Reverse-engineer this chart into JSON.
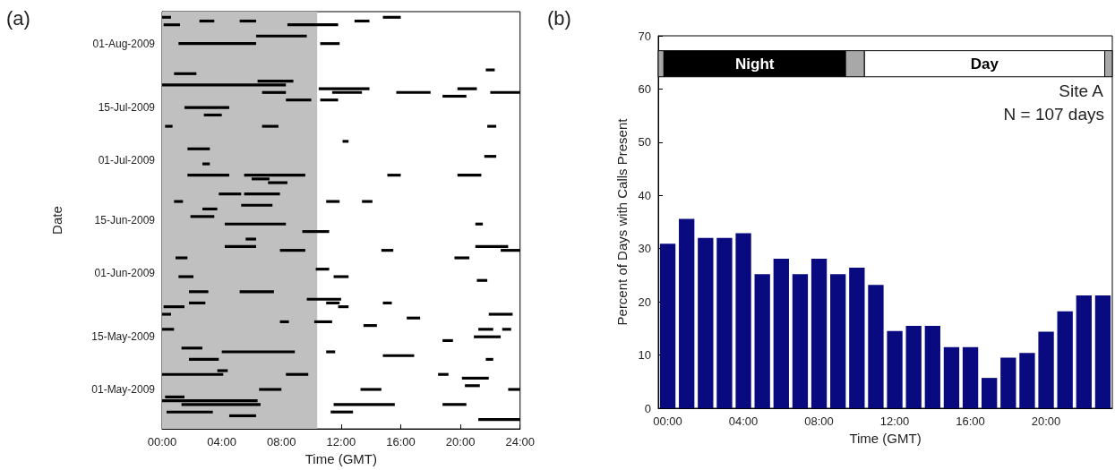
{
  "chart_data": [
    {
      "type": "bar",
      "orientation": "horizontal",
      "title": "(a)",
      "xlabel": "Time (GMT)",
      "ylabel": "Date",
      "xlim": [
        0,
        24
      ],
      "xticks": [
        {
          "value": 0,
          "label": "00:00"
        },
        {
          "value": 4,
          "label": "04:00"
        },
        {
          "value": 8,
          "label": "08:00"
        },
        {
          "value": 12,
          "label": "12:00"
        },
        {
          "value": 16,
          "label": "16:00"
        },
        {
          "value": 20,
          "label": "20:00"
        },
        {
          "value": 24,
          "label": "24:00"
        }
      ],
      "categories": [
        null,
        null,
        null,
        null,
        null,
        null,
        null,
        null,
        "01-Aug-2009",
        null,
        null,
        null,
        null,
        null,
        null,
        null,
        null,
        null,
        null,
        null,
        null,
        null,
        null,
        null,
        null,
        "15-Jul-2009",
        null,
        null,
        null,
        null,
        null,
        null,
        null,
        null,
        null,
        null,
        null,
        null,
        null,
        "01-Jul-2009",
        null,
        null,
        null,
        null,
        null,
        null,
        null,
        null,
        null,
        null,
        null,
        null,
        null,
        null,
        null,
        "15-Jun-2009",
        null,
        null,
        null,
        null,
        null,
        null,
        null,
        null,
        null,
        null,
        null,
        null,
        null,
        "01-Jun-2009",
        null,
        null,
        null,
        null,
        null,
        null,
        null,
        null,
        null,
        null,
        null,
        null,
        null,
        null,
        null,
        null,
        "15-May-2009",
        null,
        null,
        null,
        null,
        null,
        null,
        null,
        null,
        null,
        null,
        null,
        null,
        null,
        "01-May-2009",
        null,
        null,
        null,
        null,
        null,
        null,
        null,
        null,
        null,
        null
      ],
      "grid": false,
      "bands": [
        {
          "axis": "x",
          "from": 0,
          "to": 10.4,
          "color": "#c0c0c0"
        }
      ],
      "series": [
        {
          "color": "#000000",
          "base": [
            null,
            0.0,
            2.5,
            0.1,
            null,
            null,
            6.3,
            null,
            1.1,
            null,
            null,
            null,
            null,
            null,
            null,
            21.7,
            0.8,
            null,
            6.4,
            0.0,
            10.5,
            6.7,
            18.8,
            8.3,
            null,
            1.5,
            null,
            2.8,
            null,
            null,
            0.2,
            null,
            null,
            null,
            12.1,
            null,
            1.7,
            null,
            21.6,
            null,
            2.7,
            null,
            null,
            1.7,
            6.0,
            7.1,
            null,
            null,
            3.8,
            null,
            0.8,
            5.3,
            2.7,
            null,
            1.9,
            null,
            4.2,
            null,
            9.4,
            null,
            5.6,
            null,
            4.2,
            7.9,
            null,
            0.9,
            null,
            null,
            10.3,
            null,
            1.1,
            21.1,
            null,
            null,
            1.8,
            null,
            9.7,
            1.8,
            0.1,
            null,
            0.0,
            16.4,
            7.9,
            13.5,
            0.0,
            null,
            20.9,
            18.8,
            null,
            1.3,
            4.0,
            14.8,
            1.8,
            null,
            null,
            3.7,
            0.0,
            20.1,
            null,
            20.3,
            6.5,
            null,
            0.2,
            0.0,
            1.3,
            null,
            0.3,
            4.5,
            21.2,
            null,
            null
          ],
          "values": [
            null,
            0.6,
            1.0,
            1.1,
            null,
            null,
            3.4,
            null,
            5.2,
            null,
            null,
            null,
            null,
            null,
            null,
            0.6,
            1.5,
            null,
            2.4,
            8.3,
            3.4,
            1.6,
            1.6,
            1.7,
            null,
            3.0,
            null,
            1.2,
            null,
            null,
            0.5,
            null,
            null,
            null,
            0.4,
            null,
            1.5,
            null,
            0.8,
            null,
            0.5,
            null,
            null,
            2.8,
            1.2,
            1.3,
            null,
            null,
            1.5,
            null,
            0.6,
            2.1,
            1.0,
            null,
            1.6,
            null,
            4.1,
            null,
            1.8,
            null,
            0.7,
            null,
            2.1,
            1.7,
            null,
            0.8,
            null,
            null,
            0.9,
            null,
            1.0,
            0.7,
            null,
            null,
            1.3,
            null,
            2.3,
            1.1,
            1.4,
            null,
            0.6,
            0.9,
            0.6,
            0.9,
            0.8,
            null,
            1.8,
            0.7,
            null,
            1.4,
            4.9,
            2.1,
            2.0,
            null,
            null,
            0.7,
            4.1,
            1.8,
            null,
            1.0,
            1.5,
            null,
            1.3,
            6.4,
            5.3,
            null,
            3.1,
            1.8,
            2.8,
            null,
            null
          ]
        },
        {
          "color": "#000000",
          "base": [
            null,
            14.8,
            5.2,
            8.4,
            null,
            null,
            null,
            null,
            10.6,
            null,
            null,
            null,
            null,
            null,
            null,
            null,
            null,
            null,
            null,
            null,
            19.8,
            11.4,
            null,
            10.6,
            null,
            null,
            null,
            null,
            null,
            null,
            6.7,
            null,
            null,
            null,
            null,
            null,
            null,
            null,
            null,
            null,
            null,
            null,
            null,
            5.5,
            null,
            null,
            null,
            null,
            5.5,
            null,
            11.0,
            null,
            null,
            null,
            null,
            null,
            21.0,
            null,
            null,
            null,
            null,
            null,
            21.0,
            14.7,
            null,
            19.6,
            null,
            null,
            null,
            null,
            11.5,
            null,
            null,
            null,
            5.2,
            null,
            null,
            11.0,
            11.8,
            null,
            21.9,
            null,
            10.2,
            null,
            21.2,
            null,
            null,
            null,
            null,
            null,
            11.0,
            null,
            21.7,
            null,
            null,
            null,
            8.3,
            null,
            null,
            null,
            13.3,
            null,
            null,
            null,
            11.5,
            null,
            11.3,
            null,
            null,
            null,
            null
          ],
          "values": [
            null,
            1.2,
            1.1,
            3.4,
            null,
            null,
            null,
            null,
            1.3,
            null,
            null,
            null,
            null,
            null,
            null,
            null,
            null,
            null,
            null,
            null,
            1.3,
            2.0,
            null,
            1.2,
            null,
            null,
            null,
            null,
            null,
            null,
            1.1,
            null,
            null,
            null,
            null,
            null,
            null,
            null,
            null,
            null,
            null,
            null,
            null,
            4.1,
            null,
            null,
            null,
            null,
            2.4,
            null,
            0.9,
            null,
            null,
            null,
            null,
            null,
            0.5,
            null,
            null,
            null,
            null,
            null,
            2.2,
            0.8,
            null,
            1.0,
            null,
            null,
            null,
            null,
            1.0,
            null,
            null,
            null,
            2.3,
            null,
            null,
            0.9,
            0.7,
            null,
            1.6,
            null,
            1.2,
            null,
            1.0,
            null,
            null,
            null,
            null,
            null,
            0.6,
            null,
            0.5,
            null,
            null,
            null,
            1.5,
            null,
            null,
            null,
            1.4,
            null,
            null,
            null,
            4.1,
            null,
            1.5,
            null,
            null,
            null,
            null
          ]
        },
        {
          "color": "#000000",
          "base": [
            null,
            null,
            12.9,
            null,
            null,
            null,
            null,
            null,
            null,
            null,
            null,
            null,
            null,
            null,
            null,
            null,
            null,
            null,
            null,
            null,
            null,
            15.7,
            null,
            null,
            null,
            null,
            null,
            null,
            null,
            null,
            21.8,
            null,
            null,
            null,
            null,
            null,
            null,
            null,
            null,
            null,
            null,
            null,
            null,
            15.1,
            null,
            null,
            null,
            null,
            null,
            null,
            13.4,
            null,
            null,
            null,
            null,
            null,
            null,
            null,
            null,
            null,
            null,
            null,
            null,
            22.7,
            null,
            null,
            null,
            null,
            null,
            null,
            null,
            null,
            null,
            null,
            null,
            null,
            null,
            14.8,
            null,
            null,
            null,
            null,
            null,
            null,
            22.8,
            null,
            null,
            null,
            null,
            null,
            null,
            null,
            null,
            null,
            null,
            null,
            18.5,
            null,
            null,
            null,
            23.2,
            null,
            null,
            null,
            18.8,
            null,
            null,
            null,
            null,
            null,
            null
          ],
          "values": [
            null,
            null,
            1.0,
            null,
            null,
            null,
            null,
            null,
            null,
            null,
            null,
            null,
            null,
            null,
            null,
            null,
            null,
            null,
            null,
            null,
            null,
            2.3,
            null,
            null,
            null,
            null,
            null,
            null,
            null,
            null,
            0.6,
            null,
            null,
            null,
            null,
            null,
            null,
            null,
            null,
            null,
            null,
            null,
            null,
            0.9,
            null,
            null,
            null,
            null,
            null,
            null,
            0.7,
            null,
            null,
            null,
            null,
            null,
            null,
            null,
            null,
            null,
            null,
            null,
            null,
            1.3,
            null,
            null,
            null,
            null,
            null,
            null,
            null,
            null,
            null,
            null,
            null,
            null,
            null,
            0.6,
            null,
            null,
            null,
            null,
            null,
            null,
            0.6,
            null,
            null,
            null,
            null,
            null,
            null,
            null,
            null,
            null,
            null,
            null,
            0.7,
            null,
            null,
            null,
            0.8,
            null,
            null,
            null,
            1.6,
            null,
            null,
            null,
            null,
            null,
            null
          ]
        },
        {
          "color": "#000000",
          "base": [
            null,
            null,
            null,
            null,
            null,
            null,
            null,
            null,
            null,
            null,
            null,
            null,
            null,
            null,
            null,
            null,
            null,
            null,
            null,
            null,
            null,
            22.0,
            null,
            null,
            null,
            null,
            null,
            null,
            null,
            null,
            null,
            null,
            null,
            null,
            null,
            null,
            null,
            null,
            null,
            null,
            null,
            null,
            null,
            19.8,
            null,
            null,
            null,
            null,
            null,
            null,
            null,
            null,
            null,
            null,
            null,
            null,
            null,
            null,
            null,
            null,
            null,
            null,
            null,
            null,
            null,
            null,
            null,
            null,
            null,
            null,
            null,
            null,
            null,
            null,
            null,
            null,
            null,
            null,
            null,
            null,
            null,
            null,
            null,
            null,
            null,
            null,
            null,
            null,
            null,
            null,
            null,
            null,
            null,
            null,
            null,
            null,
            null,
            null,
            null,
            null,
            null,
            null,
            null,
            null,
            null,
            null,
            null,
            null,
            null,
            null,
            null
          ],
          "values": [
            null,
            null,
            null,
            null,
            null,
            null,
            null,
            null,
            null,
            null,
            null,
            null,
            null,
            null,
            null,
            null,
            null,
            null,
            null,
            null,
            null,
            2.0,
            null,
            null,
            null,
            null,
            null,
            null,
            null,
            null,
            null,
            null,
            null,
            null,
            null,
            null,
            null,
            null,
            null,
            null,
            null,
            null,
            null,
            1.6,
            null,
            null,
            null,
            null,
            null,
            null,
            null,
            null,
            null,
            null,
            null,
            null,
            null,
            null,
            null,
            null,
            null,
            null,
            null,
            null,
            null,
            null,
            null,
            null,
            null,
            null,
            null,
            null,
            null,
            null,
            null,
            null,
            null,
            null,
            null,
            null,
            null,
            null,
            null,
            null,
            null,
            null,
            null,
            null,
            null,
            null,
            null,
            null,
            null,
            null,
            null,
            null,
            null,
            null,
            null,
            null,
            null,
            null,
            null,
            null,
            null,
            null,
            null,
            null,
            null,
            null,
            null
          ]
        }
      ]
    },
    {
      "type": "bar",
      "title": "(b)",
      "xlabel": "Time (GMT)",
      "ylabel": "Percent of Days with Calls Present",
      "x": [
        0,
        1,
        2,
        3,
        4,
        5,
        6,
        7,
        8,
        9,
        10,
        11,
        12,
        13,
        14,
        15,
        16,
        17,
        18,
        19,
        20,
        21,
        22,
        23
      ],
      "values": [
        30.9,
        35.6,
        32.0,
        32.0,
        32.9,
        25.2,
        28.1,
        25.2,
        28.1,
        25.2,
        26.4,
        23.2,
        14.5,
        15.5,
        15.5,
        11.5,
        11.5,
        5.7,
        9.5,
        10.4,
        14.4,
        18.2,
        21.2,
        21.2
      ],
      "color": "#0a0a80",
      "xlim": [
        -0.5,
        23.5
      ],
      "xticks": [
        {
          "value": 0,
          "label": "00:00"
        },
        {
          "value": 4,
          "label": "04:00"
        },
        {
          "value": 8,
          "label": "08:00"
        },
        {
          "value": 12,
          "label": "12:00"
        },
        {
          "value": 16,
          "label": "16:00"
        },
        {
          "value": 20,
          "label": "20:00"
        }
      ],
      "ylim": [
        0,
        70
      ],
      "yticks": [
        0,
        10,
        20,
        30,
        40,
        50,
        60,
        70
      ],
      "grid": false,
      "bands": [
        {
          "axis": "x",
          "from": -0.5,
          "to": -0.2,
          "color": "#a8a8a8"
        },
        {
          "axis": "x",
          "from": -0.2,
          "to": 9.4,
          "label": "Night",
          "color": "#000000"
        },
        {
          "axis": "x",
          "from": 9.4,
          "to": 10.4,
          "color": "#a8a8a8"
        },
        {
          "axis": "x",
          "from": 10.4,
          "to": 23.1,
          "label": "Day",
          "color": "#ffffff"
        },
        {
          "axis": "x",
          "from": 23.1,
          "to": 23.5,
          "color": "#a8a8a8"
        }
      ],
      "annotations": [
        "Site A",
        "N = 107 days"
      ]
    }
  ]
}
